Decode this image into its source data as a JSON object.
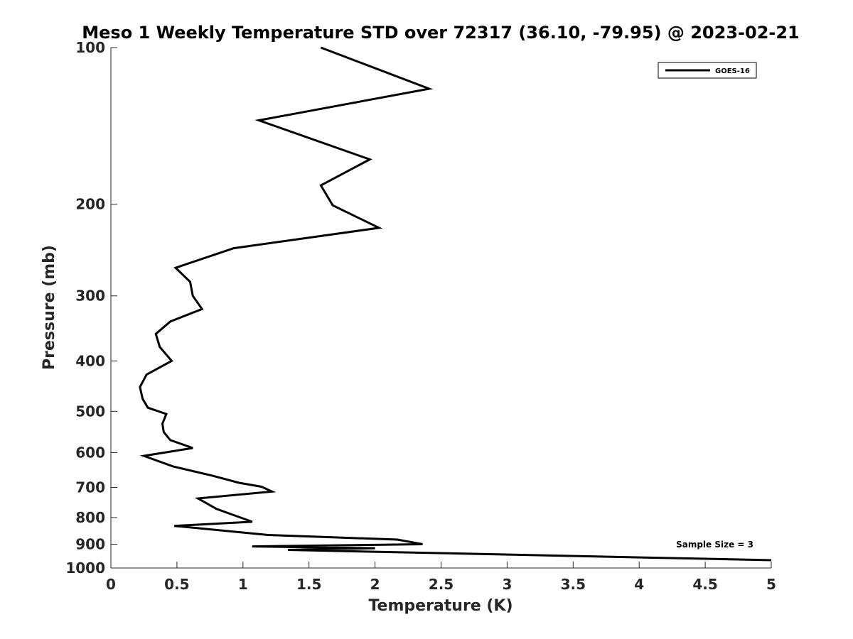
{
  "chart_data": {
    "type": "line",
    "title": "Meso 1 Weekly Temperature STD over 72317 (36.10, -79.95) @ 2023-02-21",
    "xlabel": "Temperature (K)",
    "ylabel": "Pressure (mb)",
    "xlim": [
      0,
      5
    ],
    "ylim": [
      100,
      1000
    ],
    "y_scale": "log",
    "y_reversed": true,
    "x_ticks": [
      "0",
      "0.5",
      "1",
      "1.5",
      "2",
      "2.5",
      "3",
      "3.5",
      "4",
      "4.5",
      "5"
    ],
    "x_tick_values": [
      0,
      0.5,
      1,
      1.5,
      2,
      2.5,
      3,
      3.5,
      4,
      4.5,
      5
    ],
    "y_ticks": [
      "100",
      "200",
      "300",
      "400",
      "500",
      "600",
      "700",
      "800",
      "900",
      "1000"
    ],
    "y_tick_values": [
      100,
      200,
      300,
      400,
      500,
      600,
      700,
      800,
      900,
      1000
    ],
    "grid": false,
    "legend_position": "top-right",
    "annotation": "Sample Size = 3",
    "series": [
      {
        "name": "GOES-16",
        "color": "#000000",
        "points": [
          [
            1.59,
            100
          ],
          [
            2.41,
            120
          ],
          [
            1.12,
            138
          ],
          [
            1.96,
            164
          ],
          [
            1.59,
            184
          ],
          [
            1.68,
            201
          ],
          [
            2.03,
            222
          ],
          [
            0.93,
            243
          ],
          [
            0.49,
            265
          ],
          [
            0.6,
            282
          ],
          [
            0.62,
            300
          ],
          [
            0.69,
            318
          ],
          [
            0.45,
            336
          ],
          [
            0.34,
            355
          ],
          [
            0.37,
            376
          ],
          [
            0.46,
            400
          ],
          [
            0.27,
            425
          ],
          [
            0.22,
            449
          ],
          [
            0.24,
            473
          ],
          [
            0.28,
            492
          ],
          [
            0.42,
            506
          ],
          [
            0.39,
            528
          ],
          [
            0.4,
            548
          ],
          [
            0.45,
            568
          ],
          [
            0.62,
            588
          ],
          [
            0.25,
            609
          ],
          [
            0.47,
            638
          ],
          [
            0.77,
            665
          ],
          [
            0.97,
            686
          ],
          [
            1.14,
            698
          ],
          [
            1.22,
            713
          ],
          [
            0.66,
            735
          ],
          [
            0.8,
            770
          ],
          [
            1.07,
            815
          ],
          [
            0.48,
            830
          ],
          [
            1.19,
            864
          ],
          [
            2.17,
            882
          ],
          [
            2.36,
            900
          ],
          [
            1.07,
            909
          ],
          [
            2.0,
            916
          ],
          [
            1.34,
            923
          ],
          [
            5.0,
            966
          ]
        ]
      }
    ]
  }
}
